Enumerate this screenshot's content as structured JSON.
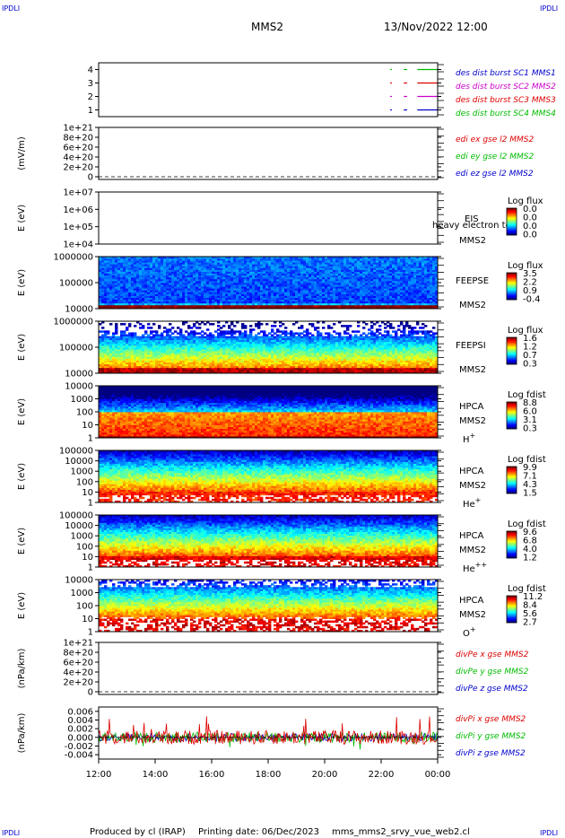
{
  "header": {
    "corner_tl": "IPDLI",
    "corner_tr": "IPDLI",
    "corner_bl": "IPDLI",
    "corner_br": "IPDLI",
    "spacecraft": "MMS2",
    "date_time": "13/Nov/2022 12:00"
  },
  "footer": {
    "produced_by": "Produced by cl (IRAP)",
    "printing_date": "Printing date: 06/Dec/2023",
    "script_name": "mms_mms2_srvy_vue_web2.cl"
  },
  "x_axis": {
    "ticks": [
      "12:00",
      "14:00",
      "16:00",
      "18:00",
      "20:00",
      "22:00",
      "00:00"
    ]
  },
  "colors": {
    "red": "#dd0000",
    "green": "#00bb00",
    "blue": "#0000cc",
    "magenta": "#cc00cc",
    "bg": "#ffffff",
    "axis": "#000000"
  },
  "chart_data": [
    {
      "type": "line",
      "id": "burst",
      "ylabel": "",
      "yticks": [
        "4",
        "3",
        "2",
        "1"
      ],
      "legend": [
        {
          "text": "des dist burst SC1 MMS1",
          "color": "#0000cc"
        },
        {
          "text": "des dist burst SC2 MMS2",
          "color": "#cc00cc"
        },
        {
          "text": "des dist burst SC3 MMS3",
          "color": "#dd0000"
        },
        {
          "text": "des dist burst SC4 MMS4",
          "color": "#00bb00"
        }
      ],
      "series": [
        {
          "level": 4,
          "color": "#00bb00",
          "segments": [
            [
              0.86,
              0.865
            ],
            [
              0.9,
              0.91
            ],
            [
              0.94,
              1.0
            ]
          ]
        },
        {
          "level": 3,
          "color": "#dd0000",
          "segments": [
            [
              0.86,
              0.865
            ],
            [
              0.9,
              0.91
            ],
            [
              0.94,
              1.0
            ]
          ]
        },
        {
          "level": 2,
          "color": "#cc00cc",
          "segments": [
            [
              0.86,
              0.865
            ],
            [
              0.9,
              0.91
            ],
            [
              0.94,
              1.0
            ]
          ]
        },
        {
          "level": 1,
          "color": "#0000cc",
          "segments": [
            [
              0.86,
              0.865
            ],
            [
              0.9,
              0.91
            ],
            [
              0.94,
              1.0
            ]
          ]
        }
      ]
    },
    {
      "type": "line",
      "id": "edi",
      "ylabel": "(mV/m)",
      "yticks": [
        "1e+21",
        "8e+20",
        "6e+20",
        "4e+20",
        "2e+20",
        "0"
      ],
      "legend": [
        {
          "text": "edi ex gse l2 MMS2",
          "color": "#dd0000"
        },
        {
          "text": "edi ey gse l2 MMS2",
          "color": "#00bb00"
        },
        {
          "text": "edi ez gse l2 MMS2",
          "color": "#0000cc"
        }
      ],
      "zero_line": true
    },
    {
      "type": "heatmap",
      "id": "eis",
      "ylabel": "E (eV)",
      "yticks": [
        "1e+07",
        "1e+06",
        "1e+05",
        "1e+04"
      ],
      "instrument": "EIS",
      "spacecraft": "MMS2",
      "overlay_text": "heavy electron to",
      "colorbar_title": "Log flux",
      "colorbar_ticks": [
        "0.0",
        "0.0",
        "0.0",
        "0.0"
      ],
      "fill": "empty"
    },
    {
      "type": "heatmap",
      "id": "feepse",
      "ylabel": "E (eV)",
      "yticks": [
        "1000000",
        "100000",
        "10000"
      ],
      "instrument": "FEEPSE",
      "spacecraft": "MMS2",
      "colorbar_title": "Log flux",
      "colorbar_ticks": [
        "3.5",
        "2.2",
        "0.9",
        "-0.4"
      ],
      "fill": "feepse"
    },
    {
      "type": "heatmap",
      "id": "feepsi",
      "ylabel": "E (eV)",
      "yticks": [
        "1000000",
        "100000",
        "10000"
      ],
      "instrument": "FEEPSI",
      "spacecraft": "MMS2",
      "colorbar_title": "Log flux",
      "colorbar_ticks": [
        "1.6",
        "1.2",
        "0.7",
        "0.3"
      ],
      "fill": "feepsi"
    },
    {
      "type": "heatmap",
      "id": "hpca_h",
      "ylabel": "E (eV)",
      "yticks": [
        "10000",
        "1000",
        "100",
        "10",
        "1"
      ],
      "instrument": "HPCA",
      "spacecraft": "MMS2",
      "species": "H",
      "species_sup": "+",
      "colorbar_title": "Log fdist",
      "colorbar_ticks": [
        "8.8",
        "6.0",
        "3.1",
        "0.3"
      ],
      "fill": "hpca_h"
    },
    {
      "type": "heatmap",
      "id": "hpca_he",
      "ylabel": "E (eV)",
      "yticks": [
        "100000",
        "10000",
        "1000",
        "100",
        "10",
        "1"
      ],
      "instrument": "HPCA",
      "spacecraft": "MMS2",
      "species": "He",
      "species_sup": "+",
      "colorbar_title": "Log fdist",
      "colorbar_ticks": [
        "9.9",
        "7.1",
        "4.3",
        "1.5"
      ],
      "fill": "hpca_he"
    },
    {
      "type": "heatmap",
      "id": "hpca_hepp",
      "ylabel": "E (eV)",
      "yticks": [
        "100000",
        "10000",
        "1000",
        "100",
        "10",
        "1"
      ],
      "instrument": "HPCA",
      "spacecraft": "MMS2",
      "species": "He",
      "species_sup": "++",
      "colorbar_title": "Log fdist",
      "colorbar_ticks": [
        "9.6",
        "6.8",
        "4.0",
        "1.2"
      ],
      "fill": "hpca_hepp"
    },
    {
      "type": "heatmap",
      "id": "hpca_o",
      "ylabel": "E (eV)",
      "yticks": [
        "10000",
        "1000",
        "100",
        "10",
        "1"
      ],
      "instrument": "HPCA",
      "spacecraft": "MMS2",
      "species": "O",
      "species_sup": "+",
      "colorbar_title": "Log fdist",
      "colorbar_ticks": [
        "11.2",
        "8.4",
        "5.6",
        "2.7"
      ],
      "fill": "hpca_o"
    },
    {
      "type": "line",
      "id": "divpe",
      "ylabel": "(nPa/km)",
      "yticks": [
        "1e+21",
        "8e+20",
        "6e+20",
        "4e+20",
        "2e+20",
        "0"
      ],
      "legend": [
        {
          "text": "divPe x gse MMS2",
          "color": "#dd0000"
        },
        {
          "text": "divPe y gse MMS2",
          "color": "#00bb00"
        },
        {
          "text": "divPe z gse MMS2",
          "color": "#0000cc"
        }
      ],
      "zero_line": true
    },
    {
      "type": "line",
      "id": "divpi",
      "ylabel": "(nPa/km)",
      "yticks": [
        "0.006",
        "0.004",
        "0.002",
        "0.000",
        "-0.002",
        "-0.004"
      ],
      "yrange": [
        -0.005,
        0.007
      ],
      "legend": [
        {
          "text": "divPi x gse MMS2",
          "color": "#dd0000"
        },
        {
          "text": "divPi y gse MMS2",
          "color": "#00bb00"
        },
        {
          "text": "divPi z gse MMS2",
          "color": "#0000cc"
        }
      ],
      "zero_line": true,
      "fill": "noise"
    }
  ]
}
